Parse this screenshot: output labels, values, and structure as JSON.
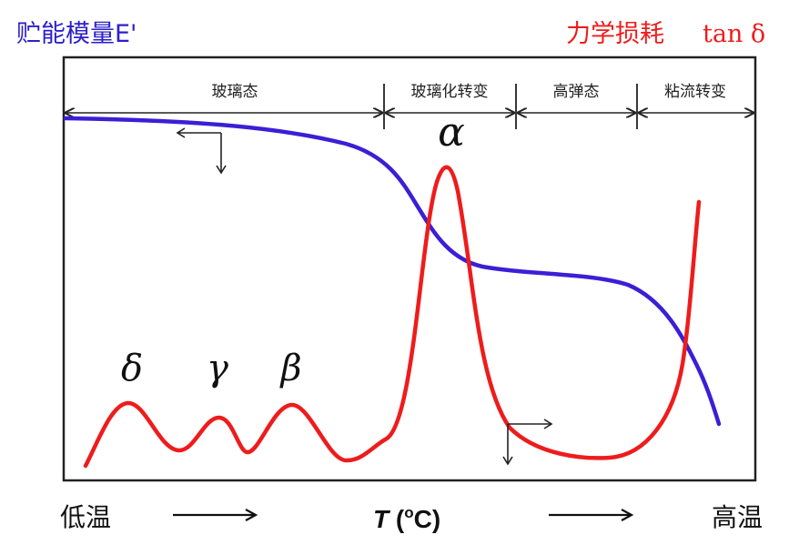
{
  "left_axis_label": "贮能模量E'",
  "right_axis_label": "力学损耗",
  "right_axis_symbol": "tan δ",
  "regions": [
    {
      "label": "玻璃态"
    },
    {
      "label": "玻璃化转变"
    },
    {
      "label": "高弹态"
    },
    {
      "label": "粘流转变"
    }
  ],
  "peaks": [
    {
      "symbol": "δ"
    },
    {
      "symbol": "γ"
    },
    {
      "symbol": "β"
    },
    {
      "symbol": "α"
    }
  ],
  "x_axis": {
    "left_label": "低温",
    "right_label": "高温",
    "center_symbol": "T",
    "center_unit": " (",
    "center_unit_sup": "o",
    "center_unit_end": "C)"
  },
  "colors": {
    "modulus_curve": "#3b1fd6",
    "loss_curve": "#ee1c1c",
    "frame": "#222222",
    "left_label": "#2d1fc8",
    "right_label": "#ee1c1c"
  }
}
